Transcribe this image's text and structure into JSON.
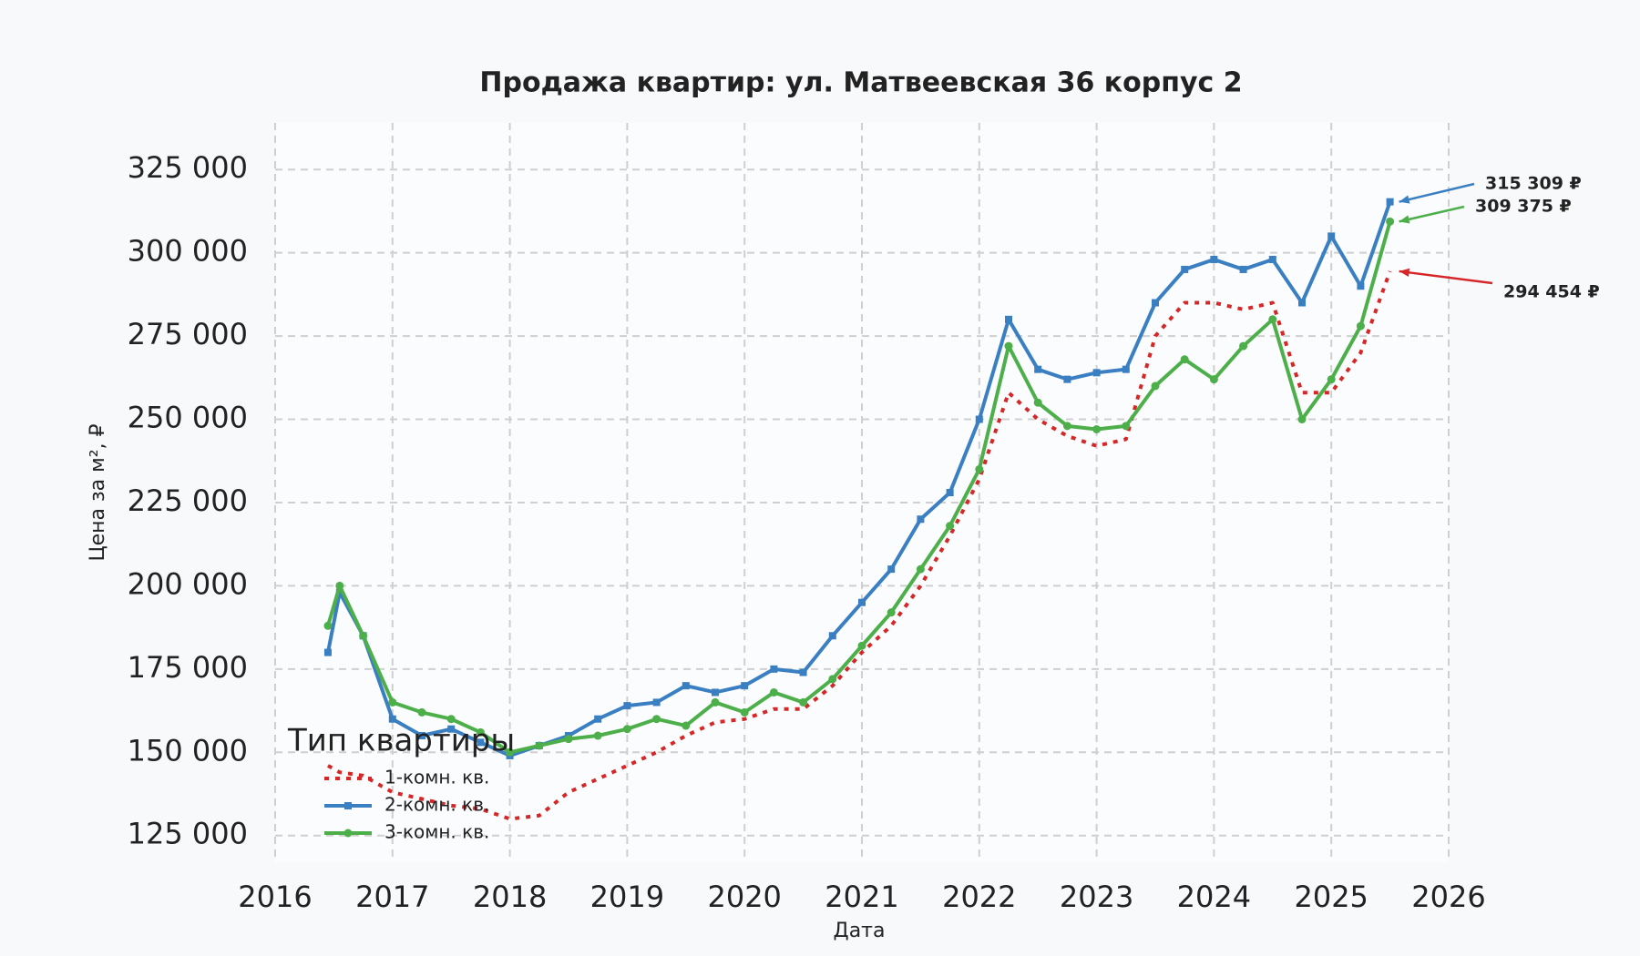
{
  "chart_data": {
    "type": "line",
    "title": "Продажа квартир: ул. Матвеевская 36 корпус 2",
    "x_label": "Дата",
    "y_label": "Цена за м², ₽",
    "x": [
      2016.45,
      2016.55,
      2016.75,
      2017.0,
      2017.25,
      2017.5,
      2017.75,
      2018.0,
      2018.25,
      2018.5,
      2018.75,
      2019.0,
      2019.25,
      2019.5,
      2019.75,
      2020.0,
      2020.25,
      2020.5,
      2020.75,
      2021.0,
      2021.25,
      2021.5,
      2021.75,
      2022.0,
      2022.25,
      2022.5,
      2022.75,
      2023.0,
      2023.25,
      2023.5,
      2023.75,
      2024.0,
      2024.25,
      2024.5,
      2024.75,
      2025.0,
      2025.25,
      2025.5
    ],
    "series": [
      {
        "name": "1-комн. кв.",
        "color": "#d62728",
        "style": "dotted",
        "marker": null,
        "values": [
          146000,
          144000,
          143000,
          138000,
          136000,
          134000,
          133000,
          130000,
          131000,
          138000,
          142000,
          146000,
          150000,
          155000,
          159000,
          160000,
          163000,
          163000,
          170000,
          180000,
          188000,
          200000,
          215000,
          232000,
          258000,
          250000,
          245000,
          242000,
          244000,
          275000,
          285000,
          285000,
          283000,
          285000,
          258000,
          258000,
          270000,
          294454
        ]
      },
      {
        "name": "2-комн. кв.",
        "color": "#3a7fc1",
        "style": "solid",
        "marker": "square",
        "values": [
          180000,
          198000,
          185000,
          160000,
          155000,
          157000,
          153000,
          149000,
          152000,
          155000,
          160000,
          164000,
          165000,
          170000,
          168000,
          170000,
          175000,
          174000,
          185000,
          195000,
          205000,
          220000,
          228000,
          250000,
          280000,
          265000,
          262000,
          264000,
          265000,
          285000,
          295000,
          298000,
          295000,
          298000,
          285000,
          305000,
          290000,
          315309
        ]
      },
      {
        "name": "3-комн. кв.",
        "color": "#4daf4a",
        "style": "solid",
        "marker": "circle",
        "values": [
          188000,
          200000,
          185000,
          165000,
          162000,
          160000,
          156000,
          150000,
          152000,
          154000,
          155000,
          157000,
          160000,
          158000,
          165000,
          162000,
          168000,
          165000,
          172000,
          182000,
          192000,
          205000,
          218000,
          235000,
          272000,
          255000,
          248000,
          247000,
          248000,
          260000,
          268000,
          262000,
          272000,
          280000,
          250000,
          262000,
          278000,
          309375
        ]
      }
    ],
    "legend_title": "Тип квартиры",
    "legend": "lower left",
    "annotations": [
      {
        "text": "315 309 ₽",
        "color": "#3a7fc1"
      },
      {
        "text": "309 375 ₽",
        "color": "#4daf4a"
      },
      {
        "text": "294 454 ₽",
        "color": "#d62728"
      }
    ],
    "xlim": [
      2016,
      2026
    ],
    "xticks": [
      2016,
      2017,
      2018,
      2019,
      2020,
      2021,
      2022,
      2023,
      2024,
      2025,
      2026
    ],
    "ylim": [
      117000,
      339000
    ],
    "yticks": [
      {
        "value": 125000,
        "label": "125 000"
      },
      {
        "value": 150000,
        "label": "150 000"
      },
      {
        "value": 175000,
        "label": "175 000"
      },
      {
        "value": 200000,
        "label": "200 000"
      },
      {
        "value": 225000,
        "label": "225 000"
      },
      {
        "value": 250000,
        "label": "250 000"
      },
      {
        "value": 275000,
        "label": "275 000"
      },
      {
        "value": 300000,
        "label": "300 000"
      },
      {
        "value": 325000,
        "label": "325 000"
      }
    ],
    "grid": true
  }
}
